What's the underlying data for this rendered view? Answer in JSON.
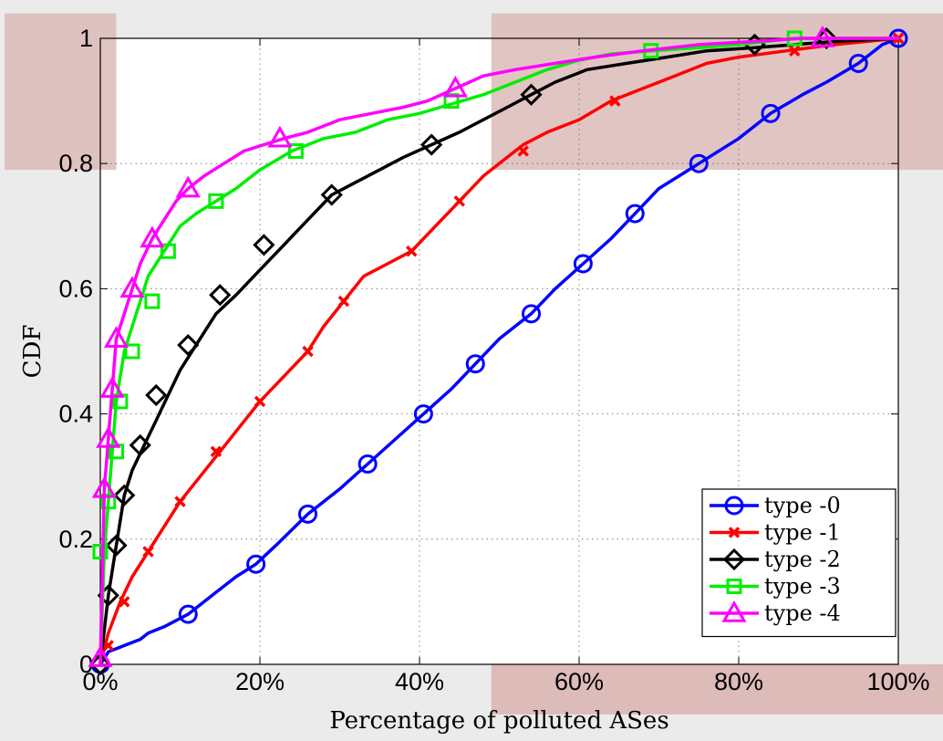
{
  "chart_data": {
    "type": "line",
    "title": "",
    "xlabel": "Percentage of polluted ASes",
    "ylabel": "CDF",
    "xlim": [
      0,
      100
    ],
    "ylim": [
      0,
      1
    ],
    "x_ticks": [
      0,
      20,
      40,
      60,
      80,
      100
    ],
    "x_tick_labels": [
      "0%",
      "20%",
      "40%",
      "60%",
      "80%",
      "100%"
    ],
    "y_ticks": [
      0,
      0.2,
      0.4,
      0.6,
      0.8,
      1
    ],
    "y_tick_labels": [
      "0",
      "0.2",
      "0.4",
      "0.6",
      "0.8",
      "1"
    ],
    "grid": true,
    "legend_position": "bottom-right",
    "highlight_regions": [
      {
        "x": [
          -12,
          2
        ],
        "y": [
          0.79,
          1.04
        ],
        "color": "#dcbbb8"
      },
      {
        "x": [
          49,
          106
        ],
        "y": [
          0.79,
          1.04
        ],
        "color": "#dcbbb8"
      },
      {
        "x": [
          49,
          106
        ],
        "y": [
          -0.08,
          0
        ],
        "color": "#dcbbb8"
      }
    ],
    "series": [
      {
        "name": "type -0",
        "color": "#0000ff",
        "marker": "circle",
        "x": [
          0,
          1,
          3,
          5,
          6,
          8,
          11,
          14,
          17,
          19.5,
          22,
          26,
          30,
          33.5,
          37,
          40.5,
          44,
          47,
          50,
          54,
          57,
          60.5,
          64,
          67,
          70,
          75,
          80,
          84,
          88,
          91,
          95,
          98,
          100
        ],
        "y": [
          0,
          0.02,
          0.03,
          0.04,
          0.05,
          0.06,
          0.08,
          0.11,
          0.14,
          0.16,
          0.19,
          0.24,
          0.28,
          0.32,
          0.36,
          0.4,
          0.44,
          0.48,
          0.52,
          0.56,
          0.6,
          0.64,
          0.68,
          0.72,
          0.76,
          0.8,
          0.84,
          0.88,
          0.91,
          0.93,
          0.96,
          0.99,
          1.0
        ],
        "markers_x": [
          0,
          11,
          19.5,
          26,
          33.5,
          40.5,
          47,
          54,
          60.5,
          67,
          75,
          84,
          95,
          100
        ],
        "markers_y": [
          0,
          0.08,
          0.16,
          0.24,
          0.32,
          0.4,
          0.48,
          0.56,
          0.64,
          0.72,
          0.8,
          0.88,
          0.96,
          1.0
        ]
      },
      {
        "name": "type -1",
        "color": "#ff0000",
        "marker": "x",
        "x": [
          0,
          1,
          2.5,
          4,
          6,
          8,
          10,
          12.5,
          15,
          17.5,
          20,
          23,
          26,
          28,
          30.5,
          33,
          36,
          39,
          42,
          45,
          48,
          51,
          53,
          56,
          60,
          64,
          68,
          72,
          76,
          80,
          86,
          92,
          100
        ],
        "y": [
          0,
          0.05,
          0.1,
          0.14,
          0.18,
          0.22,
          0.26,
          0.3,
          0.34,
          0.38,
          0.42,
          0.46,
          0.5,
          0.54,
          0.58,
          0.62,
          0.64,
          0.66,
          0.7,
          0.74,
          0.78,
          0.81,
          0.83,
          0.85,
          0.87,
          0.9,
          0.92,
          0.94,
          0.96,
          0.97,
          0.98,
          0.99,
          1.0
        ],
        "markers_x": [
          1,
          3,
          6,
          10,
          14.5,
          20,
          26,
          30.5,
          39,
          45,
          53,
          64.5,
          87,
          100
        ],
        "markers_y": [
          0.03,
          0.1,
          0.18,
          0.26,
          0.34,
          0.42,
          0.5,
          0.58,
          0.66,
          0.74,
          0.82,
          0.9,
          0.98,
          1.0
        ]
      },
      {
        "name": "type -2",
        "color": "#000000",
        "marker": "diamond",
        "x": [
          0,
          1,
          2,
          3,
          4,
          5.5,
          7,
          8.5,
          10,
          12,
          14.5,
          17,
          20,
          23,
          26,
          29,
          32,
          35,
          38,
          41.5,
          45,
          48,
          51,
          54,
          57,
          61,
          66,
          71,
          76,
          82,
          87,
          92,
          100
        ],
        "y": [
          0,
          0.11,
          0.19,
          0.27,
          0.31,
          0.35,
          0.39,
          0.43,
          0.47,
          0.51,
          0.56,
          0.59,
          0.63,
          0.67,
          0.71,
          0.75,
          0.77,
          0.79,
          0.81,
          0.83,
          0.85,
          0.87,
          0.89,
          0.91,
          0.93,
          0.95,
          0.96,
          0.97,
          0.98,
          0.985,
          0.99,
          0.995,
          1.0
        ],
        "markers_x": [
          0,
          1,
          2,
          3,
          5,
          7,
          11,
          15,
          20.5,
          29,
          41.5,
          54,
          82,
          91
        ],
        "markers_y": [
          0,
          0.11,
          0.19,
          0.27,
          0.35,
          0.43,
          0.51,
          0.59,
          0.67,
          0.75,
          0.83,
          0.91,
          0.99,
          1.0
        ]
      },
      {
        "name": "type -3",
        "color": "#00ee00",
        "marker": "square",
        "x": [
          0,
          0.5,
          1,
          1.5,
          2,
          3,
          4,
          5,
          6,
          7,
          8,
          10,
          12,
          14.5,
          17,
          20,
          24,
          28,
          32,
          36,
          40,
          44,
          48,
          52,
          56,
          60,
          64,
          69,
          75,
          80,
          87,
          93,
          100
        ],
        "y": [
          0,
          0.18,
          0.26,
          0.34,
          0.42,
          0.5,
          0.54,
          0.58,
          0.62,
          0.64,
          0.66,
          0.7,
          0.72,
          0.74,
          0.76,
          0.79,
          0.82,
          0.84,
          0.85,
          0.87,
          0.88,
          0.895,
          0.91,
          0.93,
          0.95,
          0.965,
          0.975,
          0.98,
          0.985,
          0.99,
          1.0,
          1.0,
          1.0
        ],
        "markers_x": [
          0,
          1,
          2,
          2.5,
          4,
          6.5,
          8.5,
          14.5,
          24.5,
          44,
          69,
          87
        ],
        "markers_y": [
          0.18,
          0.26,
          0.34,
          0.42,
          0.5,
          0.58,
          0.66,
          0.74,
          0.82,
          0.9,
          0.98,
          1.0
        ]
      },
      {
        "name": "type -4",
        "color": "#ff00ff",
        "marker": "triangle",
        "x": [
          0,
          0.5,
          1,
          1.5,
          2,
          3,
          4,
          5,
          6.5,
          8,
          9.5,
          11,
          13,
          15.5,
          18,
          20.5,
          23,
          26,
          30,
          34,
          38,
          41,
          44.5,
          48,
          52,
          57,
          62,
          68,
          75,
          82,
          88,
          91,
          100
        ],
        "y": [
          0,
          0.28,
          0.36,
          0.44,
          0.52,
          0.56,
          0.6,
          0.64,
          0.68,
          0.71,
          0.74,
          0.76,
          0.78,
          0.8,
          0.82,
          0.83,
          0.84,
          0.85,
          0.87,
          0.88,
          0.89,
          0.9,
          0.92,
          0.94,
          0.95,
          0.96,
          0.97,
          0.98,
          0.99,
          0.995,
          1.0,
          1.0,
          1.0
        ],
        "markers_x": [
          0,
          0.5,
          1,
          1.5,
          2,
          4,
          6.5,
          11,
          22.5,
          44.5,
          90.5
        ],
        "markers_y": [
          0.01,
          0.28,
          0.36,
          0.44,
          0.52,
          0.6,
          0.68,
          0.76,
          0.84,
          0.92,
          1.0
        ]
      }
    ]
  }
}
